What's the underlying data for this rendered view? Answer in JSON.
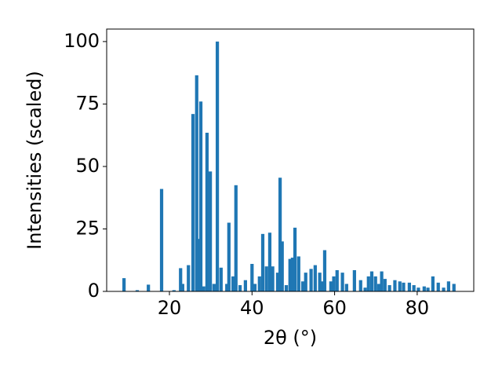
{
  "chart_data": {
    "type": "bar",
    "x_label": "2θ (°)",
    "y_label": "Intensities (scaled)",
    "color": "#1f77b4",
    "grid": false,
    "xlim": [
      4.8,
      93.7
    ],
    "ylim": [
      0,
      105
    ],
    "xticks": [
      20,
      40,
      60,
      80
    ],
    "yticks": [
      0,
      25,
      50,
      75,
      100
    ],
    "x": [
      9.0,
      12.2,
      14.9,
      18.1,
      21.1,
      22.7,
      23.2,
      24.6,
      25.7,
      26.6,
      27.0,
      27.6,
      28.3,
      29.1,
      29.9,
      30.8,
      31.6,
      32.5,
      33.9,
      34.4,
      35.4,
      36.1,
      37.1,
      38.4,
      40.0,
      40.7,
      41.8,
      42.6,
      43.5,
      44.3,
      45.0,
      46.2,
      46.8,
      47.3,
      48.3,
      49.2,
      49.8,
      50.4,
      51.3,
      52.3,
      53.0,
      54.3,
      55.3,
      56.4,
      57.0,
      57.6,
      59.1,
      59.8,
      60.6,
      61.9,
      62.9,
      64.8,
      66.3,
      67.4,
      68.2,
      69.0,
      69.9,
      70.7,
      71.4,
      72.2,
      73.3,
      74.6,
      75.8,
      76.7,
      78.1,
      79.2,
      80.3,
      81.7,
      82.6,
      83.8,
      85.1,
      86.4,
      87.6,
      88.9
    ],
    "values": [
      5.3,
      0.5,
      2.7,
      41,
      0.5,
      9.3,
      3,
      10.5,
      71,
      86.5,
      21,
      76,
      2,
      63.5,
      48,
      3,
      100,
      9.5,
      3,
      27.5,
      6,
      42.5,
      2.5,
      4.5,
      11,
      3,
      6,
      23,
      10,
      23.5,
      10,
      7.5,
      45.5,
      20,
      2.5,
      13,
      13.5,
      25.5,
      14,
      4,
      7.5,
      9,
      10.5,
      7.5,
      4,
      16.5,
      4,
      6,
      8.5,
      7.5,
      3,
      8.5,
      4.5,
      1.5,
      6,
      8,
      6,
      3,
      8,
      5,
      2.5,
      4.5,
      4,
      3.5,
      3.5,
      2.5,
      1.5,
      2,
      1.5,
      6,
      3.5,
      1.5,
      4,
      3
    ]
  }
}
